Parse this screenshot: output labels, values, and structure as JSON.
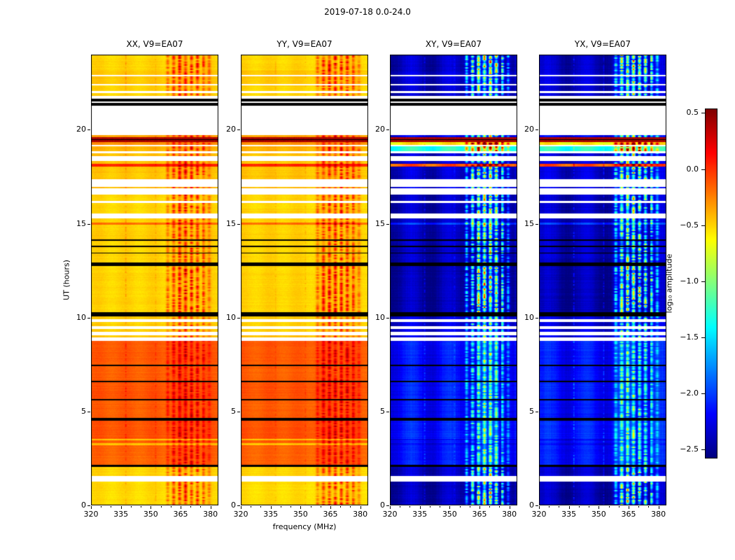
{
  "figure": {
    "title": "2019-07-18 0.0-24.0",
    "xlabel": "frequency (MHz)",
    "ylabel": "UT (hours)",
    "colorbar_label": "log₁₀ amplitude"
  },
  "chart_data": {
    "type": "heatmap",
    "subtype": "radio-dynamic-spectra",
    "title": "2019-07-18 0.0-24.0",
    "xlabel": "frequency (MHz)",
    "ylabel": "UT (hours)",
    "colorbar_label": "log₁₀ amplitude",
    "panels": [
      {
        "id": "xx",
        "title": "XX, V9=EA07",
        "kind": "parallel"
      },
      {
        "id": "yy",
        "title": "YY, V9=EA07",
        "kind": "parallel"
      },
      {
        "id": "xy",
        "title": "XY, V9=EA07",
        "kind": "cross"
      },
      {
        "id": "yx",
        "title": "YX, V9=EA07",
        "kind": "cross"
      }
    ],
    "x_range": [
      320,
      384
    ],
    "x_ticks": [
      320,
      335,
      350,
      365,
      380
    ],
    "x_minor_ticks": [
      325,
      330,
      340,
      345,
      355,
      360,
      370,
      375
    ],
    "y_range": [
      0,
      24
    ],
    "y_ticks": [
      0,
      5,
      10,
      15,
      20
    ],
    "colorbar": {
      "colormap": "jet",
      "range": [
        -2.58,
        0.54
      ],
      "tick_values": [
        0.5,
        0.0,
        -0.5,
        -1.0,
        -1.5,
        -2.0,
        -2.5
      ],
      "tick_labels": [
        "0.5",
        "0.0",
        "−0.5",
        "−1.0",
        "−1.5",
        "−2.0",
        "−2.5"
      ]
    },
    "rfi_band": [
      356,
      381
    ],
    "rfi_channels": [
      358.5,
      361.5,
      364.5,
      367.5,
      370.5,
      373.5,
      376.5,
      379.5
    ],
    "notch_freqs": [
      363.2,
      369.2,
      375.4
    ],
    "faint_lines": [
      337.5,
      352.5
    ],
    "time_segments": [
      [
        0.0,
        1.25,
        "d",
        -0.52,
        -2.42,
        0.55
      ],
      [
        1.25,
        1.55,
        "w"
      ],
      [
        1.55,
        2.05,
        "d",
        -0.5,
        -2.38,
        0.5
      ],
      [
        2.05,
        2.15,
        "b"
      ],
      [
        2.15,
        3.2,
        "d",
        -0.15,
        -2.15,
        0.38
      ],
      [
        3.2,
        3.3,
        "d",
        -0.45,
        -2.25,
        0.3
      ],
      [
        3.3,
        3.45,
        "d",
        -0.13,
        -2.15,
        0.38
      ],
      [
        3.45,
        3.55,
        "d",
        -0.45,
        -2.25,
        0.3
      ],
      [
        3.55,
        4.5,
        "d",
        -0.1,
        -2.12,
        0.38
      ],
      [
        4.5,
        4.65,
        "b"
      ],
      [
        4.65,
        5.58,
        "d",
        -0.13,
        -2.18,
        0.38
      ],
      [
        5.58,
        5.66,
        "b"
      ],
      [
        5.66,
        6.55,
        "d",
        -0.1,
        -2.15,
        0.38
      ],
      [
        6.55,
        6.65,
        "b"
      ],
      [
        6.65,
        7.42,
        "d",
        -0.14,
        -2.18,
        0.38
      ],
      [
        7.42,
        7.5,
        "b"
      ],
      [
        7.5,
        8.75,
        "d",
        -0.12,
        -2.16,
        0.38
      ],
      [
        8.75,
        8.95,
        "w"
      ],
      [
        8.95,
        9.05,
        "d",
        -0.45,
        -2.3,
        0.45
      ],
      [
        9.05,
        9.25,
        "w"
      ],
      [
        9.25,
        9.4,
        "d",
        -0.48,
        -2.32,
        0.45
      ],
      [
        9.4,
        9.55,
        "w"
      ],
      [
        9.55,
        9.75,
        "d",
        -0.48,
        -2.32,
        0.45
      ],
      [
        9.75,
        9.9,
        "w"
      ],
      [
        9.9,
        10.05,
        "d",
        -0.48,
        -2.32,
        0.45
      ],
      [
        10.05,
        10.3,
        "b"
      ],
      [
        10.3,
        12.75,
        "d",
        -0.5,
        -2.45,
        0.6
      ],
      [
        12.75,
        12.95,
        "b"
      ],
      [
        12.95,
        13.4,
        "d",
        -0.5,
        -2.4,
        0.5
      ],
      [
        13.4,
        13.47,
        "b"
      ],
      [
        13.47,
        13.75,
        "d",
        -0.5,
        -2.4,
        0.5
      ],
      [
        13.75,
        13.82,
        "b"
      ],
      [
        13.82,
        14.1,
        "d",
        -0.5,
        -2.4,
        0.5
      ],
      [
        14.1,
        14.17,
        "b"
      ],
      [
        14.17,
        14.95,
        "d",
        -0.48,
        -2.4,
        0.5
      ],
      [
        14.95,
        15.06,
        "d",
        -0.18,
        -2.05,
        0.55
      ],
      [
        15.06,
        15.28,
        "d",
        -0.5,
        -2.4,
        0.5
      ],
      [
        15.28,
        15.55,
        "w"
      ],
      [
        15.55,
        16.1,
        "d",
        -0.5,
        -2.4,
        0.55
      ],
      [
        16.1,
        16.2,
        "w"
      ],
      [
        16.2,
        16.55,
        "d",
        -0.5,
        -2.4,
        0.55
      ],
      [
        16.55,
        16.88,
        "w"
      ],
      [
        16.88,
        16.96,
        "d",
        -0.42,
        -2.3,
        0.5
      ],
      [
        16.96,
        17.35,
        "w"
      ],
      [
        17.35,
        18.05,
        "d",
        -0.45,
        -2.35,
        0.55
      ],
      [
        18.05,
        18.2,
        "d",
        0.05,
        -0.1,
        0.3
      ],
      [
        18.2,
        18.35,
        "d",
        -0.45,
        -2.35,
        0.5
      ],
      [
        18.35,
        18.6,
        "w"
      ],
      [
        18.6,
        18.75,
        "d",
        -0.45,
        -2.35,
        0.5
      ],
      [
        18.75,
        18.85,
        "w"
      ],
      [
        18.85,
        19.1,
        "d",
        -0.4,
        -1.3,
        0.55
      ],
      [
        19.1,
        19.2,
        "w"
      ],
      [
        19.2,
        19.35,
        "d",
        -0.3,
        -0.6,
        0.45
      ],
      [
        19.35,
        19.46,
        "m"
      ],
      [
        19.46,
        19.5,
        "b"
      ],
      [
        19.5,
        19.62,
        "m"
      ],
      [
        19.62,
        19.72,
        "d",
        -0.35,
        -2.25,
        0.5
      ],
      [
        19.72,
        21.28,
        "w"
      ],
      [
        21.28,
        21.44,
        "b"
      ],
      [
        21.44,
        21.52,
        "w"
      ],
      [
        21.52,
        21.66,
        "b"
      ],
      [
        21.66,
        21.8,
        "w"
      ],
      [
        21.8,
        21.95,
        "d",
        -0.5,
        -2.38,
        0.5
      ],
      [
        21.95,
        22.05,
        "w"
      ],
      [
        22.05,
        22.35,
        "d",
        -0.5,
        -2.38,
        0.5
      ],
      [
        22.35,
        22.42,
        "w"
      ],
      [
        22.42,
        22.85,
        "d",
        -0.46,
        -2.36,
        0.52
      ],
      [
        22.85,
        22.92,
        "w"
      ],
      [
        22.92,
        23.15,
        "d",
        -0.46,
        -2.36,
        0.55
      ],
      [
        23.15,
        24.0,
        "d",
        -0.5,
        -2.4,
        0.62
      ]
    ]
  }
}
